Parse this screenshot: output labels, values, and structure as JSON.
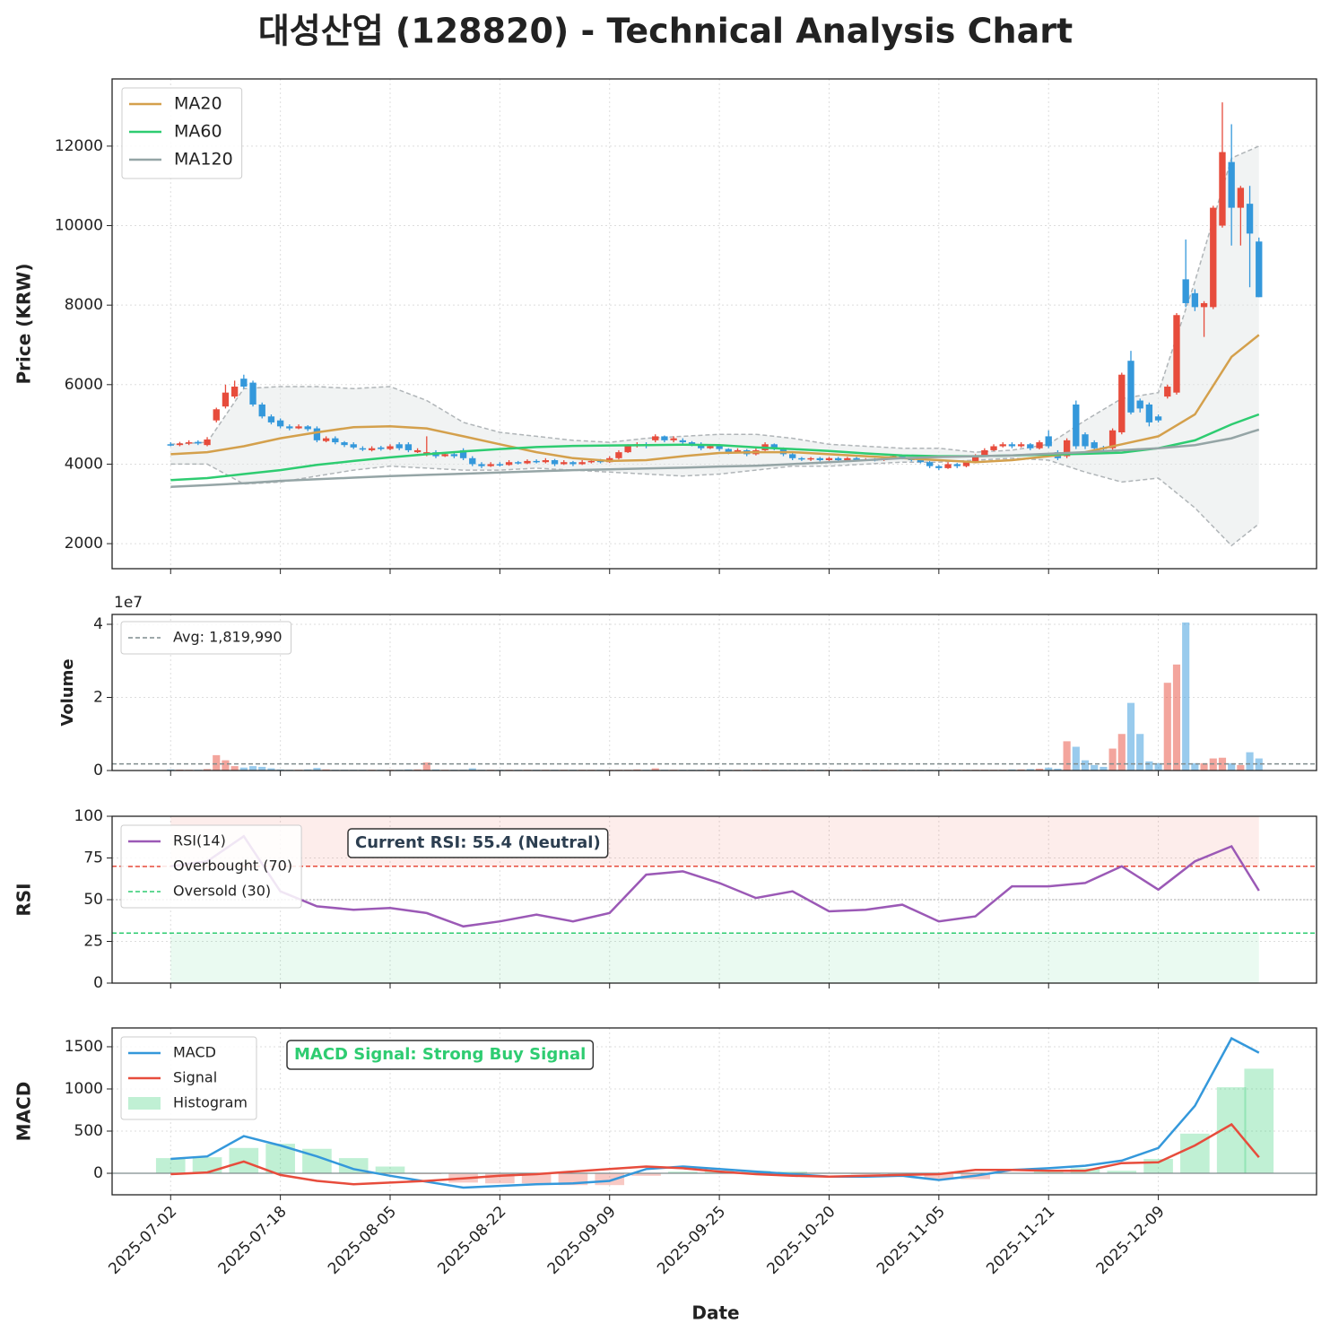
{
  "title": "대성산업 (128820) - Technical Analysis Chart",
  "x_axis": {
    "label": "Date",
    "xlim": [
      -6.4,
      125.3
    ],
    "xticks": [
      {
        "value": 0,
        "label": "2025-07-02"
      },
      {
        "value": 12,
        "label": "2025-07-18"
      },
      {
        "value": 24,
        "label": "2025-08-05"
      },
      {
        "value": 36,
        "label": "2025-08-22"
      },
      {
        "value": 48,
        "label": "2025-09-09"
      },
      {
        "value": 60,
        "label": "2025-09-25"
      },
      {
        "value": 72,
        "label": "2025-10-20"
      },
      {
        "value": 84,
        "label": "2025-11-05"
      },
      {
        "value": 96,
        "label": "2025-11-21"
      },
      {
        "value": 108,
        "label": "2025-12-09"
      }
    ]
  },
  "chart_data": [
    {
      "type": "candlestick",
      "ylabel": "Price (KRW)",
      "ylim": [
        1370,
        13690
      ],
      "yticks": [
        2000,
        4000,
        6000,
        8000,
        10000,
        12000
      ],
      "grid": true,
      "legend": "upper left",
      "up_color": "#e74c3c",
      "down_color": "#3498db",
      "candles": {
        "open": [
          4500,
          4480,
          4520,
          4560,
          4480,
          5100,
          5450,
          5700,
          6150,
          6050,
          5500,
          5200,
          5100,
          4950,
          4900,
          4950,
          4900,
          4580,
          4650,
          4550,
          4500,
          4400,
          4350,
          4420,
          4380,
          4500,
          4500,
          4300,
          4250,
          4300,
          4200,
          4250,
          4350,
          4150,
          4000,
          3950,
          4000,
          3980,
          4050,
          4020,
          4080,
          4050,
          4100,
          4000,
          4050,
          4000,
          4050,
          4100,
          4050,
          4150,
          4300,
          4450,
          4500,
          4600,
          4700,
          4600,
          4600,
          4550,
          4500,
          4400,
          4450,
          4380,
          4300,
          4350,
          4250,
          4350,
          4500,
          4400,
          4250,
          4150,
          4120,
          4150,
          4100,
          4150,
          4100,
          4150,
          4100,
          4120,
          4100,
          4150,
          4200,
          4150,
          4100,
          4050,
          3950,
          3900,
          4000,
          3950,
          4050,
          4200,
          4350,
          4450,
          4500,
          4450,
          4500,
          4400,
          4700,
          4300,
          4200,
          5500,
          4750,
          4550,
          4420,
          4400,
          4800,
          6600,
          5600,
          5500,
          5200,
          5700,
          5800,
          8650,
          8300,
          7950,
          7950,
          10000,
          11600,
          10450,
          10550,
          9600
        ],
        "high": [
          4550,
          4560,
          4600,
          4600,
          4680,
          5420,
          6000,
          6100,
          6250,
          6100,
          5550,
          5250,
          5150,
          5000,
          5000,
          4980,
          4950,
          4700,
          4700,
          4580,
          4550,
          4450,
          4450,
          4460,
          4500,
          4550,
          4550,
          4400,
          4700,
          4350,
          4300,
          4280,
          4400,
          4200,
          4050,
          4050,
          4050,
          4100,
          4080,
          4120,
          4120,
          4150,
          4130,
          4100,
          4080,
          4100,
          4120,
          4130,
          4200,
          4350,
          4500,
          4550,
          4550,
          4750,
          4720,
          4700,
          4650,
          4580,
          4550,
          4500,
          4480,
          4400,
          4400,
          4380,
          4400,
          4550,
          4520,
          4420,
          4280,
          4180,
          4180,
          4180,
          4180,
          4180,
          4180,
          4180,
          4150,
          4150,
          4180,
          4250,
          4230,
          4180,
          4130,
          4080,
          3980,
          4050,
          4030,
          4080,
          4250,
          4400,
          4500,
          4550,
          4550,
          4550,
          4530,
          4600,
          4850,
          4350,
          4650,
          5600,
          4800,
          4600,
          4460,
          4900,
          6300,
          6850,
          5650,
          5550,
          5250,
          6000,
          7800,
          9650,
          8400,
          8100,
          10500,
          13100,
          12550,
          11000,
          11000,
          9700
        ],
        "low": [
          4450,
          4450,
          4480,
          4480,
          4450,
          5050,
          5400,
          5650,
          5900,
          5450,
          5150,
          5000,
          4900,
          4850,
          4880,
          4830,
          4550,
          4550,
          4500,
          4430,
          4380,
          4330,
          4320,
          4340,
          4350,
          4350,
          4300,
          4280,
          4200,
          4150,
          4180,
          4150,
          4100,
          3950,
          3900,
          3930,
          3940,
          3960,
          3990,
          4000,
          4020,
          4020,
          3950,
          3980,
          3950,
          3980,
          4020,
          4020,
          4030,
          4120,
          4280,
          4420,
          4400,
          4550,
          4550,
          4550,
          4500,
          4450,
          4350,
          4380,
          4330,
          4250,
          4270,
          4200,
          4220,
          4330,
          4350,
          4200,
          4100,
          4080,
          4080,
          4070,
          4080,
          4070,
          4080,
          4070,
          4080,
          4070,
          4080,
          4130,
          4120,
          4070,
          4020,
          3900,
          3850,
          3880,
          3900,
          3920,
          4020,
          4180,
          4330,
          4420,
          4400,
          4420,
          4350,
          4370,
          4400,
          4100,
          4150,
          4380,
          4380,
          4350,
          4330,
          4350,
          4750,
          5250,
          5300,
          4950,
          5050,
          5650,
          5750,
          7950,
          7850,
          7200,
          7900,
          9950,
          9500,
          9500,
          8450,
          8200
        ],
        "close": [
          4480,
          4520,
          4550,
          4520,
          4620,
          5380,
          5800,
          5950,
          5950,
          5500,
          5200,
          5050,
          4950,
          4900,
          4950,
          4880,
          4600,
          4650,
          4550,
          4480,
          4420,
          4380,
          4400,
          4380,
          4450,
          4400,
          4350,
          4350,
          4300,
          4200,
          4250,
          4200,
          4150,
          4000,
          3950,
          4000,
          3980,
          4050,
          4020,
          4080,
          4050,
          4100,
          4000,
          4050,
          4000,
          4050,
          4080,
          4050,
          4150,
          4300,
          4450,
          4500,
          4450,
          4700,
          4600,
          4650,
          4550,
          4500,
          4400,
          4450,
          4380,
          4300,
          4350,
          4250,
          4350,
          4500,
          4400,
          4250,
          4150,
          4120,
          4150,
          4100,
          4150,
          4100,
          4150,
          4100,
          4120,
          4100,
          4150,
          4200,
          4150,
          4100,
          4050,
          3950,
          3900,
          4000,
          3950,
          4050,
          4200,
          4350,
          4450,
          4500,
          4450,
          4500,
          4400,
          4550,
          4450,
          4150,
          4600,
          4450,
          4450,
          4400,
          4380,
          4850,
          6250,
          5300,
          5400,
          5050,
          5100,
          5950,
          7750,
          8050,
          7950,
          8050,
          10450,
          11850,
          10450,
          10950,
          9800,
          8200
        ]
      },
      "line_x": [
        0,
        4,
        8,
        12,
        16,
        20,
        24,
        28,
        32,
        36,
        40,
        44,
        48,
        52,
        56,
        60,
        64,
        68,
        72,
        76,
        80,
        84,
        88,
        92,
        96,
        100,
        104,
        108,
        112,
        116,
        119
      ],
      "series": [
        {
          "name": "MA20",
          "color": "#d4a04c",
          "values": [
            4250,
            4300,
            4450,
            4650,
            4800,
            4930,
            4950,
            4900,
            4700,
            4500,
            4300,
            4150,
            4080,
            4100,
            4200,
            4280,
            4300,
            4300,
            4250,
            4200,
            4150,
            4100,
            4050,
            4100,
            4200,
            4300,
            4500,
            4700,
            5250,
            6700,
            7250
          ]
        },
        {
          "name": "MA60",
          "color": "#2ecc71",
          "values": [
            3600,
            3650,
            3750,
            3850,
            3980,
            4080,
            4170,
            4250,
            4320,
            4380,
            4430,
            4460,
            4470,
            4480,
            4490,
            4480,
            4420,
            4380,
            4330,
            4270,
            4220,
            4200,
            4200,
            4220,
            4240,
            4260,
            4290,
            4400,
            4600,
            5000,
            5250
          ]
        },
        {
          "name": "MA120",
          "color": "#95a5a6",
          "values": [
            3430,
            3470,
            3520,
            3580,
            3620,
            3660,
            3700,
            3730,
            3760,
            3790,
            3820,
            3850,
            3870,
            3890,
            3910,
            3940,
            3960,
            4000,
            4050,
            4100,
            4150,
            4180,
            4200,
            4220,
            4260,
            4300,
            4350,
            4400,
            4480,
            4650,
            4870
          ]
        }
      ],
      "bollinger": {
        "color": "#b0b5b8",
        "upper": [
          4500,
          4550,
          5900,
          5950,
          5950,
          5900,
          5950,
          5600,
          5050,
          4800,
          4700,
          4600,
          4550,
          4650,
          4700,
          4750,
          4750,
          4650,
          4500,
          4450,
          4400,
          4400,
          4300,
          4350,
          4500,
          5100,
          5650,
          5800,
          8600,
          11700,
          12000
        ],
        "lower": [
          4000,
          4000,
          3500,
          3550,
          3700,
          3850,
          3950,
          3900,
          3850,
          3850,
          3900,
          3850,
          3800,
          3750,
          3700,
          3750,
          3850,
          3950,
          3950,
          4000,
          4050,
          4050,
          4100,
          4150,
          4100,
          3800,
          3550,
          3650,
          2900,
          1950,
          2500
        ]
      }
    },
    {
      "type": "bar",
      "ylabel": "Volume",
      "offset_label": "1e7",
      "ylim": [
        0,
        42700000
      ],
      "yticks": [
        0,
        {
          "value": 20000000,
          "label": "2"
        },
        {
          "value": 40000000,
          "label": "4"
        }
      ],
      "grid": true,
      "legend": "upper left",
      "values": [
        300000,
        250000,
        200000,
        200000,
        400000,
        4200000,
        2800000,
        1200000,
        800000,
        1200000,
        1000000,
        600000,
        300000,
        200000,
        200000,
        300000,
        700000,
        300000,
        200000,
        200000,
        200000,
        200000,
        200000,
        200000,
        200000,
        200000,
        300000,
        300000,
        2200000,
        300000,
        200000,
        200000,
        200000,
        600000,
        200000,
        200000,
        200000,
        200000,
        200000,
        200000,
        200000,
        200000,
        200000,
        200000,
        200000,
        200000,
        200000,
        200000,
        200000,
        200000,
        200000,
        300000,
        200000,
        600000,
        200000,
        200000,
        200000,
        200000,
        200000,
        200000,
        200000,
        200000,
        200000,
        200000,
        200000,
        200000,
        200000,
        200000,
        200000,
        200000,
        200000,
        200000,
        200000,
        200000,
        200000,
        200000,
        200000,
        200000,
        200000,
        200000,
        200000,
        200000,
        200000,
        200000,
        200000,
        200000,
        200000,
        200000,
        200000,
        200000,
        200000,
        200000,
        300000,
        300000,
        400000,
        500000,
        800000,
        500000,
        8000000,
        6500000,
        2800000,
        1500000,
        1000000,
        6000000,
        10000000,
        18500000,
        10000000,
        2500000,
        2000000,
        24000000,
        29000000,
        40500000,
        2000000,
        2000000,
        3300000,
        3500000,
        2000000,
        1500000,
        5000000,
        3300000
      ],
      "avg": {
        "value": 1819990,
        "label": "Avg: 1,819,990",
        "color": "#7f8c8d"
      }
    },
    {
      "type": "line",
      "ylabel": "RSI",
      "ylim": [
        0,
        100
      ],
      "yticks": [
        0,
        25,
        50,
        75,
        100
      ],
      "grid": true,
      "legend": "upper left",
      "x": [
        0,
        4,
        8,
        12,
        16,
        20,
        24,
        28,
        32,
        36,
        40,
        44,
        48,
        52,
        56,
        60,
        64,
        68,
        72,
        76,
        80,
        84,
        88,
        92,
        96,
        100,
        104,
        108,
        112,
        116,
        119
      ],
      "series": [
        {
          "name": "RSI(14)",
          "color": "#9b59b6",
          "values": [
            70,
            73,
            88,
            55,
            46,
            44,
            45,
            42,
            34,
            37,
            41,
            37,
            42,
            65,
            67,
            60,
            51,
            55,
            43,
            44,
            47,
            37,
            40,
            58,
            58,
            60,
            70,
            56,
            73,
            82,
            55.4
          ]
        }
      ],
      "overbought": {
        "value": 70,
        "label": "Overbought (70)",
        "color": "#e74c3c"
      },
      "oversold": {
        "value": 30,
        "label": "Oversold (30)",
        "color": "#2ecc71"
      },
      "midline": 50,
      "annotation": "Current RSI: 55.4 (Neutral)",
      "annotation_color": "#2c3e50"
    },
    {
      "type": "line",
      "ylabel": "MACD",
      "ylim": [
        -255,
        1723
      ],
      "yticks": [
        0,
        500,
        1000,
        1500
      ],
      "grid": true,
      "legend": "upper left",
      "x": [
        0,
        4,
        8,
        12,
        16,
        20,
        24,
        28,
        32,
        36,
        40,
        44,
        48,
        52,
        56,
        60,
        64,
        68,
        72,
        76,
        80,
        84,
        88,
        92,
        96,
        100,
        104,
        108,
        112,
        116,
        119
      ],
      "series": [
        {
          "name": "MACD",
          "color": "#3498db",
          "values": [
            170,
            200,
            440,
            330,
            200,
            50,
            -30,
            -100,
            -170,
            -150,
            -130,
            -120,
            -90,
            50,
            80,
            50,
            20,
            -10,
            -40,
            -40,
            -30,
            -80,
            -30,
            40,
            60,
            90,
            150,
            300,
            800,
            1600,
            1430
          ]
        },
        {
          "name": "Signal",
          "color": "#e74c3c",
          "values": [
            -10,
            10,
            140,
            -20,
            -90,
            -130,
            -110,
            -90,
            -60,
            -30,
            -10,
            20,
            50,
            80,
            60,
            20,
            -10,
            -30,
            -40,
            -30,
            -20,
            -10,
            40,
            40,
            30,
            30,
            120,
            130,
            330,
            580,
            190
          ]
        }
      ],
      "histogram": {
        "name": "Histogram",
        "color": "#2ecc71",
        "negative_color": "#e74c3c",
        "values": [
          180,
          190,
          300,
          350,
          290,
          180,
          80,
          -10,
          -110,
          -120,
          -120,
          -140,
          -140,
          -30,
          20,
          30,
          30,
          20,
          0,
          -10,
          -10,
          -70,
          -70,
          0,
          30,
          60,
          30,
          170,
          470,
          1020,
          1240
        ]
      },
      "annotation": "MACD Signal: Strong Buy Signal",
      "annotation_color": "#2ecc71"
    }
  ]
}
